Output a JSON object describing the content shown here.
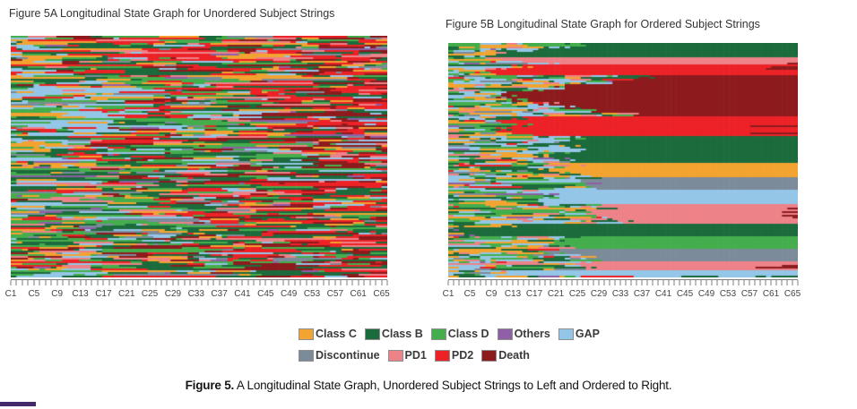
{
  "figure_a": {
    "title": "Figure 5A Longitudinal State Graph for Unordered Subject Strings"
  },
  "figure_b": {
    "title": "Figure 5B Longitudinal State Graph for Ordered Subject Strings"
  },
  "axis": {
    "tick_count": 66,
    "tick_labels": [
      "C1",
      "C5",
      "C9",
      "C13",
      "C17",
      "C21",
      "C25",
      "C29",
      "C33",
      "C37",
      "C41",
      "C45",
      "C49",
      "C53",
      "C57",
      "C61",
      "C65"
    ],
    "label_every": 4
  },
  "legend": {
    "rows": [
      [
        {
          "label": "Class C",
          "color": "#F2A330"
        },
        {
          "label": "Class B",
          "color": "#1C6B3C"
        },
        {
          "label": "Class D",
          "color": "#44AE4C"
        },
        {
          "label": "Others",
          "color": "#8F5FA7"
        },
        {
          "label": "GAP",
          "color": "#94C6E8"
        }
      ],
      [
        {
          "label": "Discontinue",
          "color": "#7C8B9A"
        },
        {
          "label": "PD1",
          "color": "#EE8289"
        },
        {
          "label": "PD2",
          "color": "#EC2227"
        },
        {
          "label": "Death",
          "color": "#8D1B1E"
        }
      ]
    ]
  },
  "caption": {
    "prefix": "Figure 5.",
    "text": " A Longitudinal State Graph, Unordered Subject Strings to Left and Ordered to Right."
  },
  "decor": {
    "corner_bar_color": "#452A6B"
  },
  "chart_data": [
    {
      "type": "heatmap",
      "variant": "longitudinal-state-lasagna-plot",
      "title": "Figure 5A Longitudinal State Graph for Unordered Subject Strings",
      "xlabel": "",
      "ylabel": "",
      "x_ticks": [
        "C1",
        "C5",
        "C9",
        "C13",
        "C17",
        "C21",
        "C25",
        "C29",
        "C33",
        "C37",
        "C41",
        "C45",
        "C49",
        "C53",
        "C57",
        "C61",
        "C65"
      ],
      "columns": 66,
      "approx_subject_rows": 135,
      "row_order": "unordered",
      "legend_position": "bottom-shared",
      "states": [
        {
          "name": "Class C",
          "color": "#F2A330"
        },
        {
          "name": "Class B",
          "color": "#1C6B3C"
        },
        {
          "name": "Class D",
          "color": "#44AE4C"
        },
        {
          "name": "Others",
          "color": "#8F5FA7"
        },
        {
          "name": "GAP",
          "color": "#94C6E8"
        },
        {
          "name": "Discontinue",
          "color": "#7C8B9A"
        },
        {
          "name": "PD1",
          "color": "#EE8289"
        },
        {
          "name": "PD2",
          "color": "#EC2227"
        },
        {
          "name": "Death",
          "color": "#8D1B1E"
        }
      ],
      "pattern_notes": "Each thin horizontal strip is one subject's per-cycle state sequence. Rows unordered: early cycles dominated by greens/orange with a light-blue GAP cluster near C4-C13 in upper rows; red, bright-red and dark-red (PD1/PD2/Death) density increases toward later cycles."
    },
    {
      "type": "heatmap",
      "variant": "longitudinal-state-lasagna-plot",
      "title": "Figure 5B Longitudinal State Graph for Ordered Subject Strings",
      "xlabel": "",
      "ylabel": "",
      "x_ticks": [
        "C1",
        "C5",
        "C9",
        "C13",
        "C17",
        "C21",
        "C25",
        "C29",
        "C33",
        "C37",
        "C41",
        "C45",
        "C49",
        "C53",
        "C57",
        "C61",
        "C65"
      ],
      "columns": 66,
      "approx_subject_rows": 131,
      "row_order": "ordered (subjects clustered by terminal state, forming wedge-shaped bands)",
      "legend_position": "bottom-shared",
      "states": [
        {
          "name": "Class C",
          "color": "#F2A330"
        },
        {
          "name": "Class B",
          "color": "#1C6B3C"
        },
        {
          "name": "Class D",
          "color": "#44AE4C"
        },
        {
          "name": "Others",
          "color": "#8F5FA7"
        },
        {
          "name": "GAP",
          "color": "#94C6E8"
        },
        {
          "name": "Discontinue",
          "color": "#7C8B9A"
        },
        {
          "name": "PD1",
          "color": "#EE8289"
        },
        {
          "name": "PD2",
          "color": "#EC2227"
        },
        {
          "name": "Death",
          "color": "#8D1B1E"
        }
      ],
      "bands_top_to_bottom": [
        {
          "state": "Class B",
          "rows": 9
        },
        {
          "state": "PD1",
          "rows": 4
        },
        {
          "state": "PD2",
          "rows": 7
        },
        {
          "state": "Death",
          "rows": 25,
          "wedge": true
        },
        {
          "state": "PD2",
          "rows": 12
        },
        {
          "state": "Class B",
          "rows": 16
        },
        {
          "state": "Class C",
          "rows": 9
        },
        {
          "state": "Discontinue",
          "rows": 8
        },
        {
          "state": "GAP",
          "rows": 9
        },
        {
          "state": "PD1",
          "rows": 12
        },
        {
          "state": "Class B",
          "rows": 8
        },
        {
          "state": "Class D",
          "rows": 8
        },
        {
          "state": "Discontinue",
          "rows": 8
        },
        {
          "state": "PD1",
          "rows": 5
        },
        {
          "state": "GAP",
          "rows": 3
        }
      ],
      "pattern_notes": "Same subjects as 5A but rows sorted: noisy mixed prefix in early cycles, then each row settles into its band color; Death band forms a large dark-red wedge widest mid-band; PD bands show dark-red patches at the right edge."
    }
  ]
}
